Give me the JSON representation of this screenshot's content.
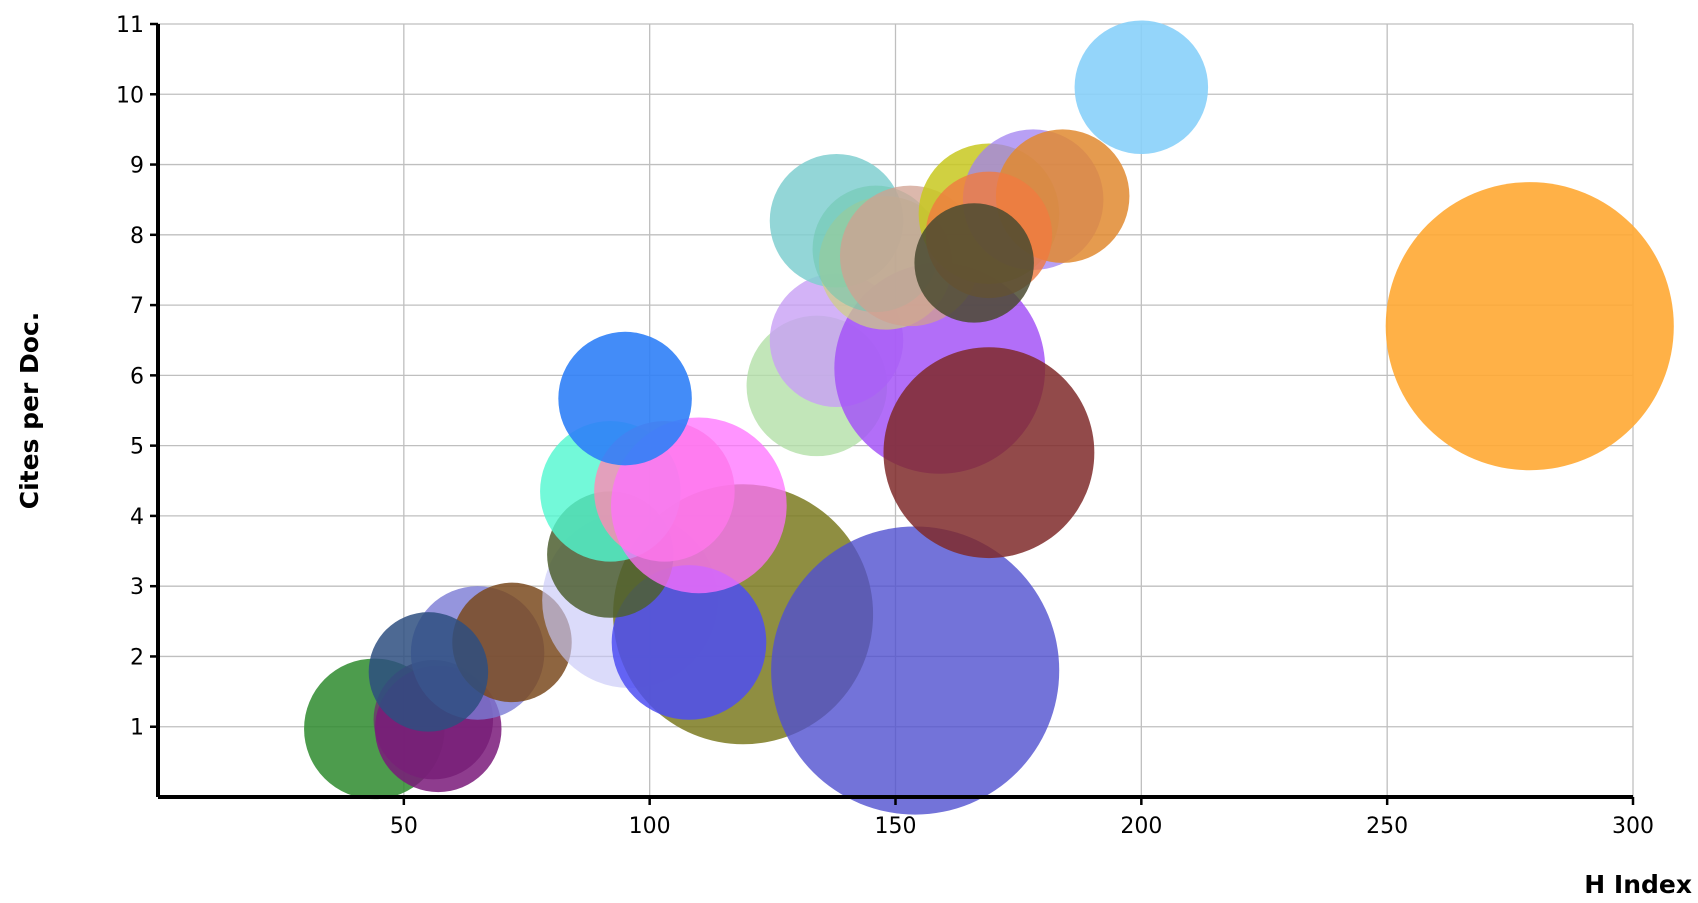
{
  "chart_data": {
    "type": "scatter",
    "subtype": "bubble",
    "title": "",
    "xlabel": "H Index",
    "ylabel": "Cites per Doc.",
    "xlim": [
      0,
      300
    ],
    "ylim": [
      0,
      11
    ],
    "xticks": [
      50,
      100,
      150,
      200,
      250,
      300
    ],
    "yticks": [
      1,
      2,
      3,
      4,
      5,
      6,
      7,
      8,
      9,
      10,
      11
    ],
    "grid": true,
    "legend": "none",
    "points": [
      {
        "x": 44,
        "y": 0.97,
        "r": 1.0,
        "color": "#2e8b2e",
        "opacity": 0.85
      },
      {
        "x": 56,
        "y": 1.1,
        "r": 0.85,
        "color": "#6b3b6b",
        "opacity": 0.85
      },
      {
        "x": 57,
        "y": 0.97,
        "r": 0.9,
        "color": "#7a1a7a",
        "opacity": 0.85
      },
      {
        "x": 65,
        "y": 2.05,
        "r": 0.95,
        "color": "#7b7bd4",
        "opacity": 0.8
      },
      {
        "x": 72,
        "y": 2.2,
        "r": 0.85,
        "color": "#7a4a1f",
        "opacity": 0.85
      },
      {
        "x": 55,
        "y": 1.78,
        "r": 0.85,
        "color": "#2e4f80",
        "opacity": 0.85
      },
      {
        "x": 96,
        "y": 2.8,
        "r": 1.25,
        "color": "#c8c8f7",
        "opacity": 0.65
      },
      {
        "x": 119,
        "y": 2.6,
        "r": 1.85,
        "color": "#7b7a20",
        "opacity": 0.85
      },
      {
        "x": 108,
        "y": 2.2,
        "r": 1.1,
        "color": "#4d4df2",
        "opacity": 0.85
      },
      {
        "x": 154,
        "y": 1.8,
        "r": 2.05,
        "color": "#5050d0",
        "opacity": 0.8
      },
      {
        "x": 92,
        "y": 3.45,
        "r": 0.9,
        "color": "#4d5f30",
        "opacity": 0.85
      },
      {
        "x": 92,
        "y": 4.35,
        "r": 1.0,
        "color": "#50f7d0",
        "opacity": 0.8
      },
      {
        "x": 103,
        "y": 4.35,
        "r": 1.0,
        "color": "#ff8ab4",
        "opacity": 0.8
      },
      {
        "x": 110,
        "y": 4.15,
        "r": 1.25,
        "color": "#ff70ff",
        "opacity": 0.75
      },
      {
        "x": 95,
        "y": 5.67,
        "r": 0.95,
        "color": "#2f7ff7",
        "opacity": 0.9
      },
      {
        "x": 134,
        "y": 5.85,
        "r": 1.0,
        "color": "#b3e0a8",
        "opacity": 0.8
      },
      {
        "x": 138,
        "y": 6.5,
        "r": 0.95,
        "color": "#c8a0f5",
        "opacity": 0.8
      },
      {
        "x": 159,
        "y": 6.1,
        "r": 1.5,
        "color": "#a455f7",
        "opacity": 0.85
      },
      {
        "x": 169,
        "y": 4.9,
        "r": 1.5,
        "color": "#7f2a2a",
        "opacity": 0.85
      },
      {
        "x": 138,
        "y": 8.2,
        "r": 0.95,
        "color": "#80cfd0",
        "opacity": 0.85
      },
      {
        "x": 148,
        "y": 7.6,
        "r": 0.95,
        "color": "#d0d080",
        "opacity": 0.7
      },
      {
        "x": 146,
        "y": 7.8,
        "r": 0.9,
        "color": "#70c8b0",
        "opacity": 0.6
      },
      {
        "x": 153,
        "y": 7.7,
        "r": 1.0,
        "color": "#d0a090",
        "opacity": 0.75
      },
      {
        "x": 169,
        "y": 8.3,
        "r": 1.0,
        "color": "#c8c820",
        "opacity": 0.85
      },
      {
        "x": 178,
        "y": 8.5,
        "r": 1.0,
        "color": "#a080f0",
        "opacity": 0.75
      },
      {
        "x": 184,
        "y": 8.55,
        "r": 0.95,
        "color": "#e08a30",
        "opacity": 0.85
      },
      {
        "x": 169,
        "y": 8.0,
        "r": 0.9,
        "color": "#f07a40",
        "opacity": 0.8
      },
      {
        "x": 166,
        "y": 7.6,
        "r": 0.85,
        "color": "#4a4a30",
        "opacity": 0.85
      },
      {
        "x": 200,
        "y": 10.1,
        "r": 0.95,
        "color": "#88d0fa",
        "opacity": 0.9
      },
      {
        "x": 279,
        "y": 6.7,
        "r": 2.05,
        "color": "#ffa833",
        "opacity": 0.9
      }
    ]
  }
}
